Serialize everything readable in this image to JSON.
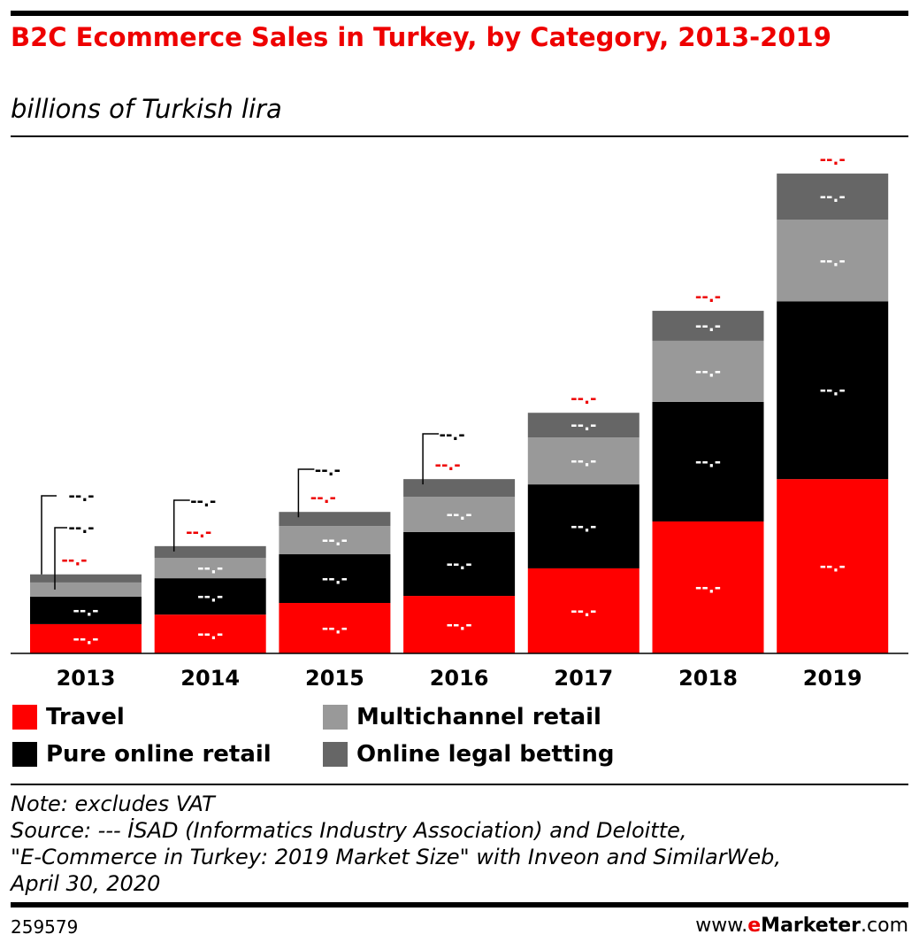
{
  "header": {
    "title": "B2C Ecommerce Sales in Turkey, by Category, 2013-2019",
    "subtitle": "billions of Turkish lira"
  },
  "chart_data": {
    "type": "bar",
    "stacked": true,
    "title": "B2C Ecommerce Sales in Turkey, by Category, 2013-2019",
    "subtitle": "billions of Turkish lira",
    "categories": [
      "2013",
      "2014",
      "2015",
      "2016",
      "2017",
      "2018",
      "2019"
    ],
    "series": [
      {
        "name": "Travel",
        "color": "#ff0000",
        "values": [
          8.3,
          11.0,
          14.3,
          16.3,
          24.1,
          37.4,
          49.4
        ]
      },
      {
        "name": "Pure online retail",
        "color": "#000000",
        "values": [
          7.8,
          10.3,
          13.8,
          18.1,
          23.8,
          33.9,
          50.4
        ]
      },
      {
        "name": "Multichannel retail",
        "color": "#999999",
        "values": [
          4.0,
          5.8,
          8.0,
          10.0,
          13.3,
          17.3,
          23.1
        ]
      },
      {
        "name": "Online legal betting",
        "color": "#666666",
        "values": [
          2.3,
          3.3,
          4.0,
          5.0,
          7.0,
          8.5,
          13.1
        ]
      }
    ],
    "data_label": "--.-",
    "legend_position": "bottom",
    "grid": false
  },
  "legend": [
    "Travel",
    "Multichannel retail",
    "Pure online retail",
    "Online legal betting"
  ],
  "notes": {
    "note": "Note: excludes VAT",
    "source1": "Source: ---    İSAD (Informatics Industry Association) and Deloitte,",
    "source2": "\"E-Commerce in Turkey: 2019 Market Size\" with Inveon and SimilarWeb,",
    "source3": "April 30, 2020"
  },
  "footer": {
    "id": "259579",
    "brand_prefix": "www.",
    "brand_e": "e",
    "brand_name": "Marketer",
    "brand_suffix": ".com"
  }
}
